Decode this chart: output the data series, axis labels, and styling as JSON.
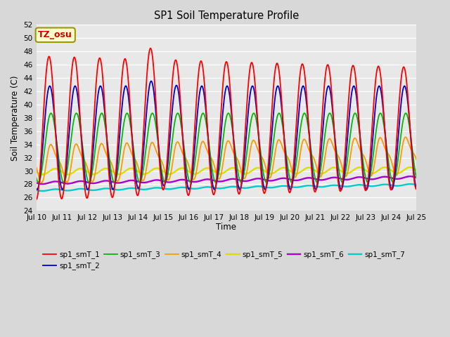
{
  "title": "SP1 Soil Temperature Profile",
  "xlabel": "Time",
  "ylabel": "Soil Temperature (C)",
  "ylim": [
    24,
    52
  ],
  "yticks": [
    24,
    26,
    28,
    30,
    32,
    34,
    36,
    38,
    40,
    42,
    44,
    46,
    48,
    50,
    52
  ],
  "colors": {
    "sp1_smT_1": "#ff0000",
    "sp1_smT_2": "#0000cc",
    "sp1_smT_3": "#00bb00",
    "sp1_smT_4": "#ff9900",
    "sp1_smT_5": "#dddd00",
    "sp1_smT_6": "#aa00cc",
    "sp1_smT_7": "#00cccc"
  },
  "legend_label": "TZ_osu",
  "fig_background": "#d8d8d8",
  "plot_background": "#e8e8e8",
  "grid_color": "#ffffff",
  "n_days": 15,
  "start_day": 10,
  "seed": 42
}
